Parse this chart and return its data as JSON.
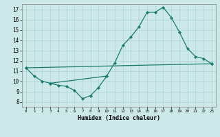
{
  "xlabel": "Humidex (Indice chaleur)",
  "bg_color": "#cce8e8",
  "line_color": "#1a7a6e",
  "grid_color": "#aad4d0",
  "xlim": [
    -0.5,
    23.5
  ],
  "ylim": [
    7.5,
    17.5
  ],
  "xticks": [
    0,
    1,
    2,
    3,
    4,
    5,
    6,
    7,
    8,
    9,
    10,
    11,
    12,
    13,
    14,
    15,
    16,
    17,
    18,
    19,
    20,
    21,
    22,
    23
  ],
  "yticks": [
    8,
    9,
    10,
    11,
    12,
    13,
    14,
    15,
    16,
    17
  ],
  "line1_x": [
    0,
    1,
    2,
    3,
    10,
    11,
    12,
    13,
    14,
    15,
    16,
    17,
    18,
    19,
    20,
    21,
    22,
    23
  ],
  "line1_y": [
    11.3,
    10.5,
    10.0,
    9.8,
    10.5,
    11.8,
    13.5,
    14.3,
    15.3,
    16.7,
    16.7,
    17.2,
    16.2,
    14.8,
    13.2,
    12.4,
    12.2,
    11.7
  ],
  "line2_x": [
    3,
    4,
    5,
    6,
    7,
    8,
    9,
    10
  ],
  "line2_y": [
    9.8,
    9.6,
    9.5,
    9.1,
    8.3,
    8.6,
    9.4,
    10.5
  ],
  "line3_x": [
    0,
    23
  ],
  "line3_y": [
    11.3,
    11.7
  ]
}
